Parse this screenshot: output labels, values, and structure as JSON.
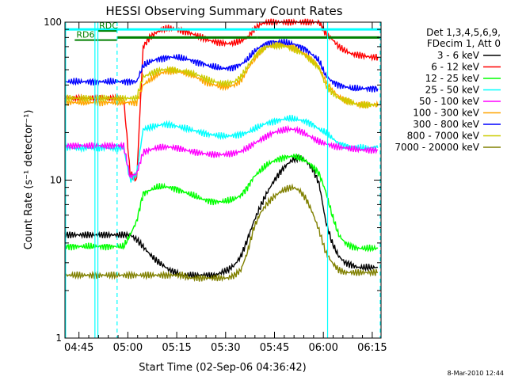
{
  "chart_data": {
    "type": "line",
    "title": "HESSI Observing Summary Count Rates",
    "xlabel": "Start Time (02-Sep-06 04:36:42)",
    "ylabel": "Count Rate (s⁻¹ detector⁻¹)",
    "y_scale": "log",
    "ylim": [
      1,
      100
    ],
    "xlim_minutes": [
      4.0,
      101.0
    ],
    "x_tick_labels": [
      "04:45",
      "05:00",
      "05:15",
      "05:30",
      "05:45",
      "06:00",
      "06:15"
    ],
    "y_tick_labels": [
      "1",
      "10",
      "100"
    ],
    "legend_header": [
      "Det 1,3,4,5,6,9,",
      "FDecim 1, Att 0"
    ],
    "legend_position": "right",
    "footer_date": "8-Mar-2010 12:44",
    "x_minutes": [
      4,
      6,
      8,
      10,
      12,
      14,
      16,
      18,
      20,
      22,
      24,
      26,
      28,
      30,
      32,
      34,
      36,
      38,
      40,
      42,
      44,
      46,
      48,
      50,
      52,
      54,
      56,
      58,
      60,
      62,
      64,
      66,
      68,
      70,
      72,
      74,
      76,
      78,
      80,
      82,
      84,
      86,
      88,
      90,
      92,
      94,
      96,
      98,
      100
    ],
    "series": [
      {
        "name": "3 - 6 keV",
        "color": "#000000",
        "values": [
          4.5,
          4.5,
          4.5,
          4.5,
          4.5,
          4.5,
          4.5,
          4.5,
          4.5,
          4.5,
          4.5,
          4.2,
          3.8,
          3.4,
          3.1,
          2.9,
          2.7,
          2.6,
          2.5,
          2.5,
          2.5,
          2.5,
          2.5,
          2.5,
          2.6,
          2.7,
          2.9,
          3.3,
          4.2,
          5.5,
          6.8,
          8.3,
          9.8,
          11.2,
          12.5,
          13.5,
          13.8,
          13.2,
          11.8,
          9.5,
          5.5,
          4,
          3.3,
          3,
          2.9,
          2.8,
          2.8,
          2.8,
          2.8
        ]
      },
      {
        "name": "6 - 12 keV",
        "color": "#ff0000",
        "values": [
          33,
          33,
          33,
          33,
          33,
          33,
          33,
          33,
          33,
          33,
          11,
          10,
          70,
          80,
          86,
          90,
          92,
          90,
          88,
          86,
          83,
          80,
          77,
          75,
          74,
          73,
          74,
          76,
          80,
          90,
          97,
          100,
          100,
          100,
          100,
          100,
          100,
          100,
          100,
          100,
          85,
          78,
          70,
          66,
          63,
          62,
          61,
          60,
          60
        ]
      },
      {
        "name": "12 - 25 keV",
        "color": "#00ff00",
        "values": [
          3.8,
          3.8,
          3.8,
          3.8,
          3.8,
          3.8,
          3.8,
          3.8,
          3.8,
          3.8,
          4.5,
          5.5,
          8.2,
          8.6,
          9,
          9.1,
          9,
          8.8,
          8.5,
          8.2,
          7.9,
          7.6,
          7.4,
          7.3,
          7.3,
          7.4,
          7.6,
          8,
          9,
          10.5,
          11.5,
          12.5,
          13.2,
          13.7,
          14,
          14.2,
          13.8,
          13.2,
          12.2,
          11,
          8.5,
          6,
          4.5,
          4,
          3.8,
          3.7,
          3.7,
          3.7,
          3.7
        ]
      },
      {
        "name": "25 - 50 keV",
        "color": "#00ffff",
        "values": [
          16,
          16,
          16,
          16,
          16,
          16,
          16,
          16,
          16,
          16,
          10,
          11,
          21,
          21.5,
          22,
          22.5,
          22.5,
          22,
          21.5,
          21,
          20.5,
          20,
          19.5,
          19.3,
          19,
          19,
          19.2,
          19.5,
          20,
          21,
          22,
          23,
          23.5,
          24,
          24.5,
          24.5,
          24,
          23.5,
          22.5,
          21,
          20,
          18.5,
          17,
          16.5,
          16.2,
          16,
          16,
          16,
          16
        ]
      },
      {
        "name": "50 - 100 keV",
        "color": "#ff00ff",
        "values": [
          16.5,
          16.5,
          16.5,
          16.5,
          16.5,
          16.5,
          16.5,
          16.5,
          16.5,
          16.5,
          10.5,
          11,
          15,
          15.5,
          16,
          16.2,
          16.2,
          16,
          15.7,
          15.3,
          15,
          14.8,
          14.6,
          14.5,
          14.5,
          14.6,
          14.8,
          15.2,
          16,
          17,
          18,
          19,
          20,
          20.5,
          21,
          21,
          20.5,
          19.5,
          18.5,
          17.5,
          17,
          16.5,
          16.2,
          16,
          15.8,
          15.6,
          15.5,
          15.5,
          15.5
        ]
      },
      {
        "name": "100 - 300 keV",
        "color": "#ffa500",
        "values": [
          31,
          31,
          31,
          31,
          31,
          31,
          31,
          31,
          31,
          31,
          31,
          31,
          40,
          43,
          46,
          48,
          49,
          49,
          48,
          47,
          45,
          43,
          41,
          40,
          39,
          39,
          40,
          43,
          50,
          58,
          65,
          70,
          72,
          72,
          71,
          69,
          66,
          62,
          57,
          52,
          42,
          37,
          34,
          32,
          31,
          30,
          30,
          30,
          30
        ]
      },
      {
        "name": "300 - 800 keV",
        "color": "#0000ff",
        "values": [
          42,
          42,
          42,
          42,
          42,
          42,
          42,
          42,
          42,
          42,
          42,
          42,
          53,
          56,
          58,
          59,
          60,
          60,
          59,
          58,
          56,
          55,
          53,
          52,
          51,
          51,
          52,
          54,
          58,
          65,
          70,
          73,
          75,
          75,
          74,
          73,
          70,
          67,
          62,
          57,
          46,
          42,
          40,
          39,
          38,
          38,
          38,
          38,
          38
        ]
      },
      {
        "name": "800 - 7000 keV",
        "color": "#cccc00",
        "values": [
          33,
          33,
          33,
          33,
          33,
          33,
          33,
          33,
          33,
          33,
          33,
          33,
          45,
          47,
          49,
          50,
          50,
          49.5,
          49,
          48,
          47,
          45,
          43,
          42,
          41,
          41,
          42,
          45,
          52,
          60,
          66,
          70,
          71,
          71,
          70,
          68,
          65,
          61,
          56,
          51,
          40,
          36,
          33,
          32,
          31,
          30,
          30,
          30,
          30
        ]
      },
      {
        "name": "7000 - 20000 keV",
        "color": "#808000",
        "values": [
          2.5,
          2.5,
          2.5,
          2.5,
          2.5,
          2.5,
          2.5,
          2.5,
          2.5,
          2.5,
          2.5,
          2.5,
          2.5,
          2.5,
          2.5,
          2.5,
          2.5,
          2.5,
          2.5,
          2.4,
          2.4,
          2.4,
          2.4,
          2.4,
          2.4,
          2.4,
          2.5,
          2.7,
          3.5,
          5,
          6.2,
          7.1,
          7.8,
          8.4,
          8.8,
          9,
          8.6,
          7.6,
          6.2,
          4.8,
          3.5,
          3,
          2.7,
          2.6,
          2.6,
          2.6,
          2.6,
          2.6,
          2.6
        ]
      }
    ],
    "annotations": [
      {
        "label": "RD6",
        "color": "#008000",
        "level": 77,
        "from_minutes": 7,
        "to_minutes": 20
      },
      {
        "label": "RDC",
        "color": "#008000",
        "level": 88,
        "from_minutes": 14,
        "to_minutes": 20
      }
    ],
    "overlays": [
      {
        "name": "saa-flag",
        "color": "#00ffff",
        "level": 90,
        "segments": [
          [
            4,
            101
          ]
        ]
      },
      {
        "name": "night-flag",
        "color": "#008000",
        "level": 80,
        "segments": [
          [
            20,
            63
          ],
          [
            63,
            101
          ]
        ]
      }
    ],
    "vertical_markers": [
      {
        "minute": 4.2,
        "style": "solid",
        "color": "#00ffff"
      },
      {
        "minute": 13.2,
        "style": "solid",
        "color": "#00ffff"
      },
      {
        "minute": 14.1,
        "style": "solid",
        "color": "#00ffff"
      },
      {
        "minute": 20.0,
        "style": "dashed",
        "color": "#00ffff"
      },
      {
        "minute": 84.6,
        "style": "solid",
        "color": "#00ffff"
      },
      {
        "minute": 102.0,
        "style": "dashed",
        "color": "#00ffff"
      }
    ]
  }
}
